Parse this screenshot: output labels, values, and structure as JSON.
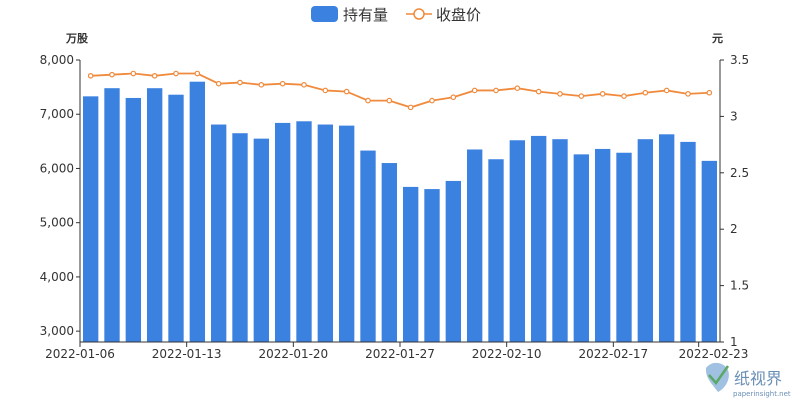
{
  "chart_data": {
    "type": "bar+line",
    "legend": {
      "placement": "top-center",
      "items": [
        {
          "name": "持有量",
          "symbol": "bar",
          "color": "#3b82e0"
        },
        {
          "name": "收盘价",
          "symbol": "line-circle",
          "color": "#f08a3c"
        }
      ]
    },
    "y_left": {
      "unit": "万股",
      "min": 2800,
      "max": 8000,
      "ticks": [
        "3,000",
        "4,000",
        "5,000",
        "6,000",
        "7,000",
        "8,000"
      ],
      "tick_values": [
        3000,
        4000,
        5000,
        6000,
        7000,
        8000
      ]
    },
    "y_right": {
      "unit": "元",
      "min": 1,
      "max": 3.5,
      "ticks": [
        "1",
        "1.5",
        "2",
        "2.5",
        "3",
        "3.5"
      ],
      "tick_values": [
        1,
        1.5,
        2,
        2.5,
        3,
        3.5
      ]
    },
    "x_tick_labels": [
      {
        "label": "2022-01-06",
        "index": 0
      },
      {
        "label": "2022-01-13",
        "index": 5
      },
      {
        "label": "2022-01-20",
        "index": 10
      },
      {
        "label": "2022-01-27",
        "index": 15
      },
      {
        "label": "2022-02-10",
        "index": 20
      },
      {
        "label": "2022-02-17",
        "index": 25
      },
      {
        "label": "2022-02-23",
        "index": 29
      }
    ],
    "categories": [
      "2022-01-06",
      "2022-01-07",
      "2022-01-10",
      "2022-01-11",
      "2022-01-12",
      "2022-01-13",
      "2022-01-14",
      "2022-01-17",
      "2022-01-18",
      "2022-01-19",
      "2022-01-20",
      "2022-01-21",
      "2022-01-24",
      "2022-01-25",
      "2022-01-26",
      "2022-01-27",
      "2022-01-28",
      "2022-02-07",
      "2022-02-08",
      "2022-02-09",
      "2022-02-10",
      "2022-02-11",
      "2022-02-14",
      "2022-02-15",
      "2022-02-16",
      "2022-02-17",
      "2022-02-18",
      "2022-02-21",
      "2022-02-22",
      "2022-02-23"
    ],
    "series": [
      {
        "name": "持有量",
        "axis": "left",
        "type": "bar",
        "color": "#3b82e0",
        "values": [
          7330,
          7480,
          7300,
          7480,
          7360,
          7600,
          6810,
          6650,
          6550,
          6840,
          6870,
          6810,
          6790,
          6330,
          6100,
          5660,
          5620,
          5770,
          6350,
          6170,
          6520,
          6600,
          6540,
          6260,
          6360,
          6290,
          6540,
          6630,
          6490,
          6140
        ]
      },
      {
        "name": "收盘价",
        "axis": "right",
        "type": "line",
        "color": "#f08a3c",
        "values": [
          3.36,
          3.37,
          3.38,
          3.36,
          3.38,
          3.38,
          3.29,
          3.3,
          3.28,
          3.29,
          3.28,
          3.23,
          3.22,
          3.14,
          3.14,
          3.08,
          3.14,
          3.17,
          3.23,
          3.23,
          3.25,
          3.22,
          3.2,
          3.18,
          3.2,
          3.18,
          3.21,
          3.23,
          3.2,
          3.21
        ]
      }
    ]
  },
  "watermark": {
    "name": "纸视界",
    "url": "paperinsight.net"
  }
}
